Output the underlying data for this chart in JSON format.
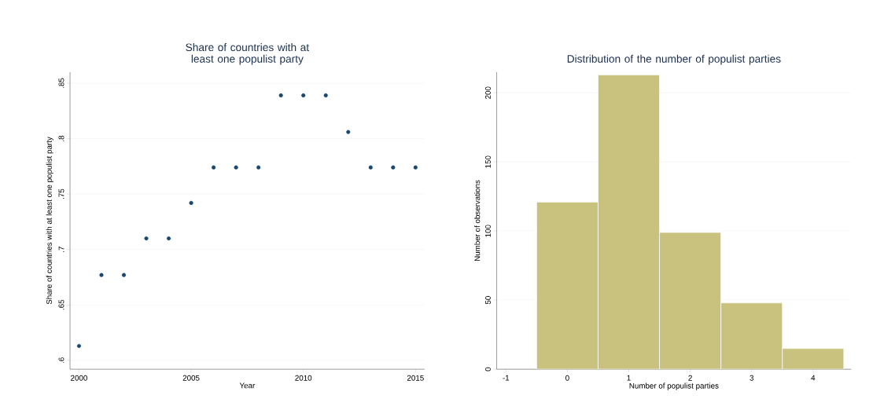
{
  "chart_data": [
    {
      "type": "scatter",
      "title": "Share of countries with at least one populist party",
      "xlabel": "Year",
      "ylabel": "Share of countries with at least one populist party",
      "x": [
        2000,
        2001,
        2002,
        2003,
        2004,
        2005,
        2006,
        2007,
        2008,
        2009,
        2010,
        2011,
        2012,
        2013,
        2014,
        2015
      ],
      "values": [
        0.613,
        0.677,
        0.677,
        0.71,
        0.71,
        0.742,
        0.774,
        0.774,
        0.774,
        0.839,
        0.839,
        0.839,
        0.806,
        0.774,
        0.774,
        0.774
      ],
      "color": "#1a476f",
      "marker": "circle",
      "grid": "y",
      "xlim": [
        1999.6,
        2015.4
      ],
      "ylim": [
        0.592,
        0.86
      ],
      "xticks": [
        2000,
        2005,
        2010,
        2015
      ],
      "yticks": [
        {
          "value": 0.6,
          "label": ".6"
        },
        {
          "value": 0.65,
          "label": ".65"
        },
        {
          "value": 0.7,
          "label": ".7"
        },
        {
          "value": 0.75,
          "label": ".75"
        },
        {
          "value": 0.8,
          "label": ".8"
        },
        {
          "value": 0.85,
          "label": ".85"
        }
      ]
    },
    {
      "type": "histogram",
      "title": "Distribution of the number of populist parties",
      "xlabel": "Number of populist parties",
      "ylabel": "Number of observations",
      "bins": [
        -0.5,
        0.5,
        1.5,
        2.5,
        3.5,
        4.5
      ],
      "values": [
        121,
        213,
        99,
        48,
        15
      ],
      "color": "#c9c27e",
      "grid": "y",
      "xlim": [
        -1.15,
        4.62
      ],
      "ylim": [
        0,
        215
      ],
      "xticks": [
        -1,
        0,
        1,
        2,
        3,
        4
      ],
      "yticks": [
        0,
        50,
        100,
        150,
        200
      ]
    }
  ]
}
